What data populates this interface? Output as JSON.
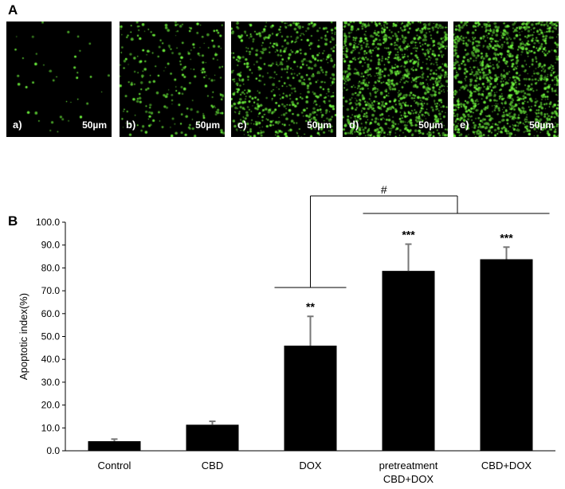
{
  "panels": {
    "a_label": "A",
    "b_label": "B"
  },
  "micrographs": [
    {
      "label": "a)",
      "scale": "50µm",
      "density": 0.03
    },
    {
      "label": "b)",
      "scale": "50µm",
      "density": 0.18
    },
    {
      "label": "c)",
      "scale": "50µm",
      "density": 0.45
    },
    {
      "label": "d)",
      "scale": "50µm",
      "density": 0.8
    },
    {
      "label": "e)",
      "scale": "50µm",
      "density": 0.88
    }
  ],
  "colors": {
    "bar": "#000000",
    "error": "#777777",
    "dots": "#5fe03a",
    "micro_bg": "#000000"
  },
  "chart_data": {
    "type": "bar",
    "categories": [
      "Control",
      "CBD",
      "DOX",
      "pretreatment\nCBD+DOX",
      "CBD+DOX"
    ],
    "values": [
      4.2,
      11.4,
      46.0,
      78.7,
      83.8
    ],
    "errors": [
      0.9,
      1.5,
      12.8,
      11.7,
      5.3
    ],
    "significance": [
      "",
      "",
      "**",
      "***",
      "***"
    ],
    "bracket_label": "#",
    "ylabel": "Apoptotic index(%)",
    "ylim": [
      0,
      100
    ],
    "yticks": [
      "0.0",
      "10.0",
      "20.0",
      "30.0",
      "40.0",
      "50.0",
      "60.0",
      "70.0",
      "80.0",
      "90.0",
      "100.0"
    ],
    "grid": false
  }
}
